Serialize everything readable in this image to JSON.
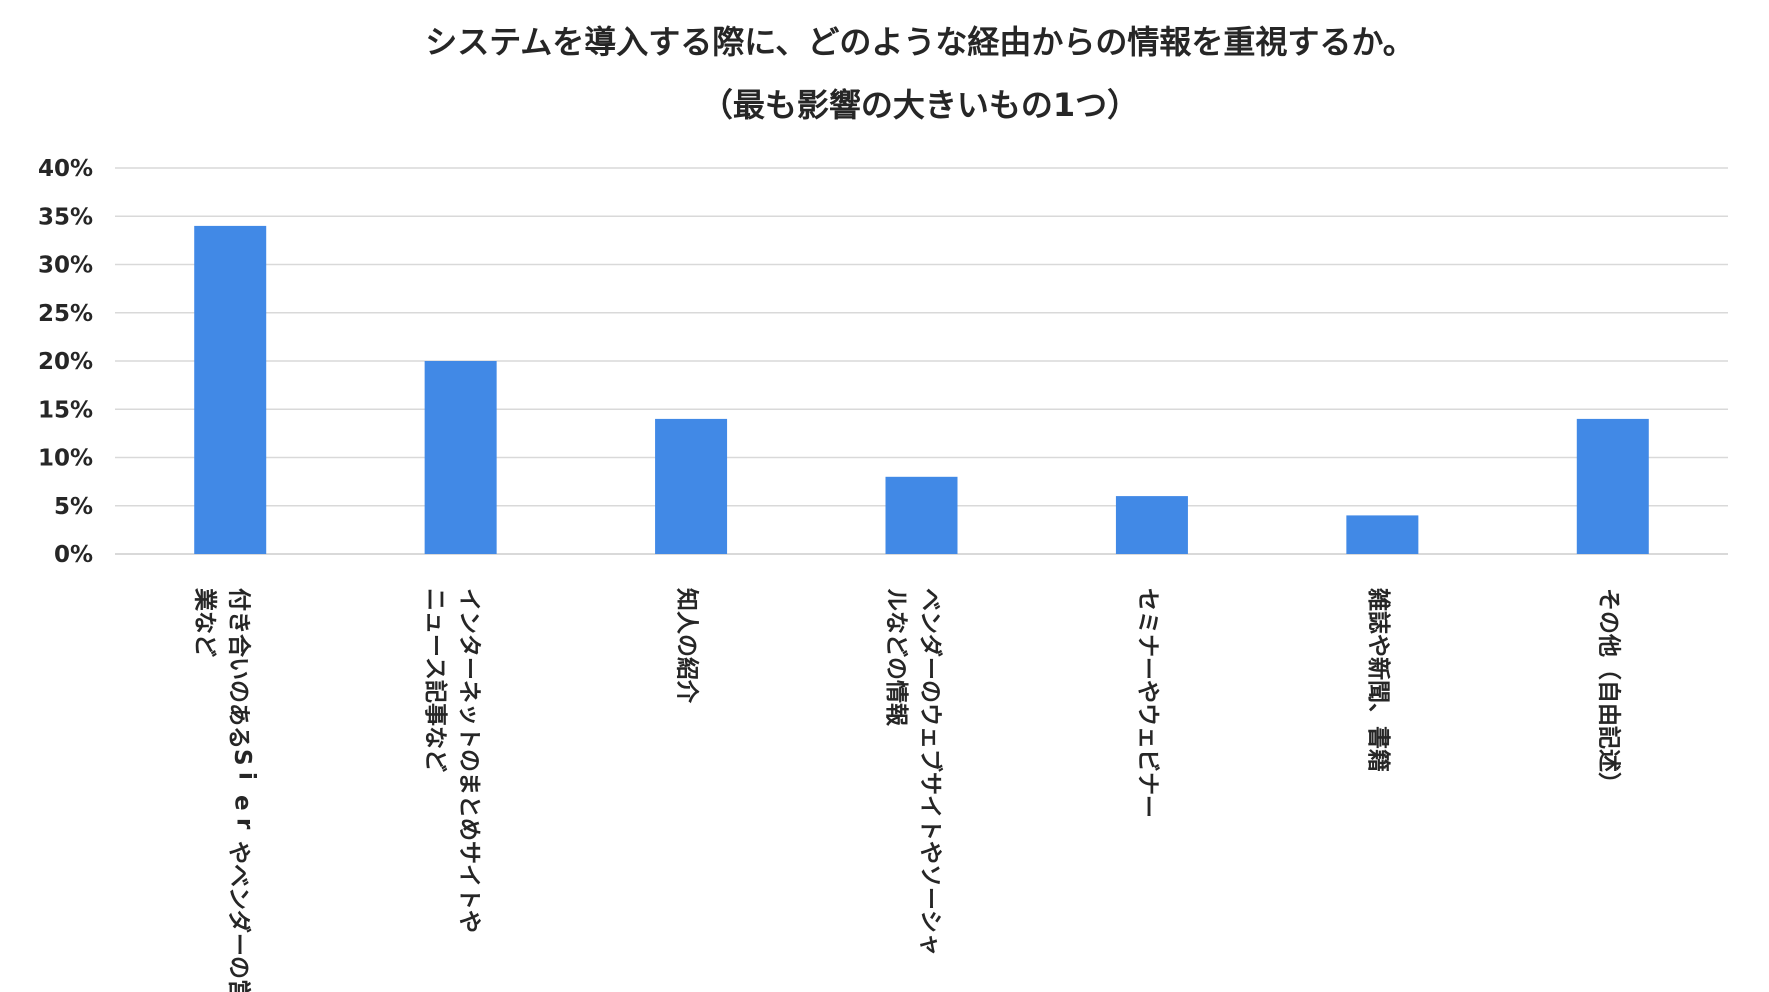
{
  "chart_data": {
    "type": "bar",
    "title_lines": [
      "システムを導入する際に、どのような経由からの情報を重視するか。",
      "（最も影響の大きいもの1つ）"
    ],
    "categories": [
      [
        "付き合いのあるSierやベンダーの営",
        "業など"
      ],
      [
        "インターネットのまとめサイトや",
        "ニュース記事など"
      ],
      [
        "知人の紹介"
      ],
      [
        "ベンダーのウェブサイトやソーシャ",
        "ルなどの情報"
      ],
      [
        "セミナーやウェビナー"
      ],
      [
        "雑誌や新聞、書籍"
      ],
      [
        "その他（自由記述）"
      ]
    ],
    "values": [
      34,
      20,
      14,
      8,
      6,
      4,
      14
    ],
    "ylim": [
      0,
      40
    ],
    "y_ticks": [
      0,
      5,
      10,
      15,
      20,
      25,
      30,
      35,
      40
    ],
    "y_tick_labels": [
      "0%",
      "5%",
      "10%",
      "15%",
      "20%",
      "25%",
      "30%",
      "35%",
      "40%"
    ],
    "xlabel": "",
    "ylabel": "",
    "grid": true,
    "legend": "none",
    "bar_color": "#4189E6"
  }
}
